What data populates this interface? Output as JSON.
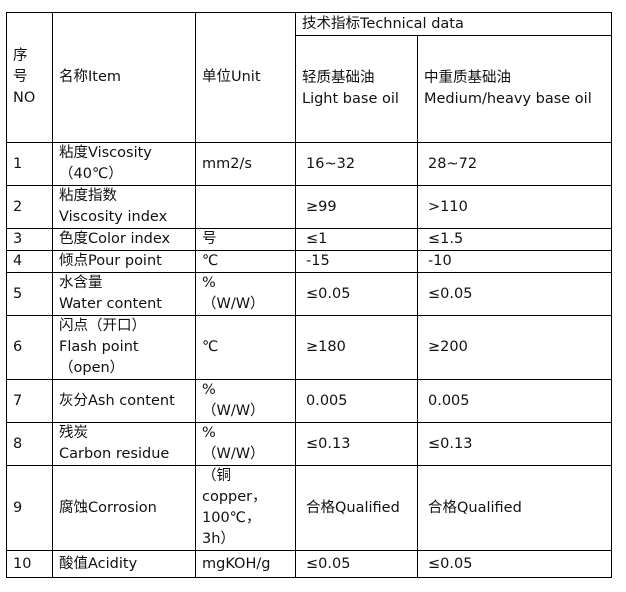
{
  "header": {
    "no": "序\n号\nNO",
    "item": "名称Item",
    "unit": "单位Unit",
    "technical": "技术指标Technical data",
    "light": "轻质基础油\nLight base oil",
    "medium": "中重质基础油\nMedium/heavy base oil"
  },
  "rows": [
    {
      "no": "1",
      "item": "粘度Viscosity\n（40℃）",
      "unit": "mm2/s",
      "light": "16~32",
      "medium": "28~72"
    },
    {
      "no": "2",
      "item": "粘度指数\nViscosity index",
      "unit": "",
      "light": "≥99",
      "medium": ">110"
    },
    {
      "no": "3",
      "item": "色度Color index",
      "unit": "号",
      "light": "≤1",
      "medium": "≤1.5"
    },
    {
      "no": "4",
      "item": "倾点Pour point",
      "unit": " ℃",
      "light": "-15",
      "medium": "-10"
    },
    {
      "no": "5",
      "item": "水含量\nWater content",
      "unit": "%\n（W/W）",
      "light": "≤0.05",
      "medium": "≤0.05"
    },
    {
      "no": "6",
      "item": "闪点（开口）\nFlash point\n（open）",
      "unit": "℃",
      "light": "≥180",
      "medium": "≥200"
    },
    {
      "no": "7",
      "item": "灰分Ash content",
      "unit": "%\n（W/W）",
      "light": "0.005",
      "medium": "0.005"
    },
    {
      "no": "8",
      "item": "残炭\nCarbon residue",
      "unit": "%\n（W/W）",
      "light": "≤0.13",
      "medium": "≤0.13"
    },
    {
      "no": "9",
      "item": "腐蚀Corrosion",
      "unit": "（铜\ncopper，\n100℃，\n3h）",
      "light": "合格Qualified",
      "medium": "合格Qualified"
    },
    {
      "no": "10",
      "item": "酸值Acidity",
      "unit": "mgKOH/g",
      "light": "≤0.05",
      "medium": "≤0.05"
    }
  ]
}
